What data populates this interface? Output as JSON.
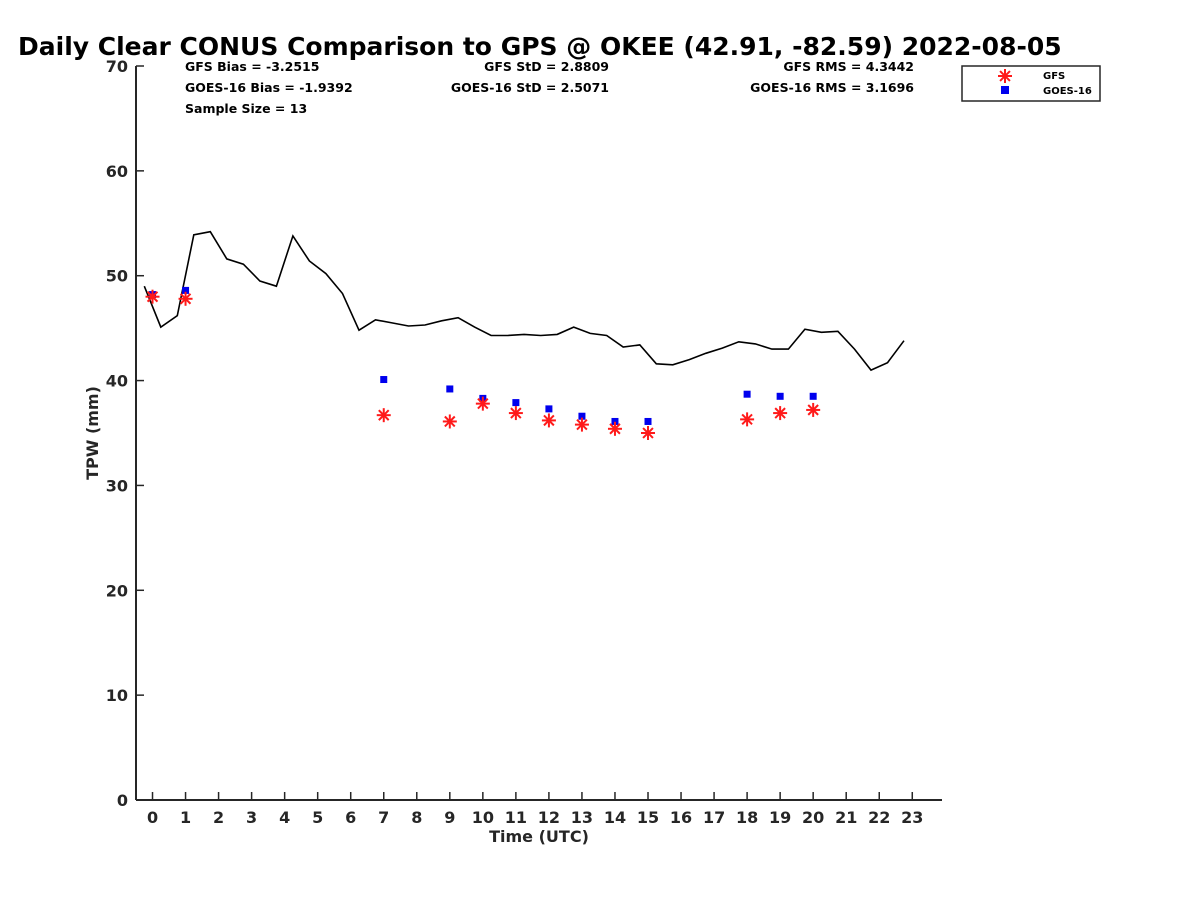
{
  "chart_data": {
    "type": "scatter",
    "title": "Daily Clear CONUS Comparison to GPS @ OKEE (42.91, -82.59) 2022-08-05",
    "xlabel": "Time (UTC)",
    "ylabel": "TPW (mm)",
    "xlim": [
      -0.5,
      23.9
    ],
    "ylim": [
      0,
      70
    ],
    "xticks": [
      0,
      1,
      2,
      3,
      4,
      5,
      6,
      7,
      8,
      9,
      10,
      11,
      12,
      13,
      14,
      15,
      16,
      17,
      18,
      19,
      20,
      21,
      22,
      23
    ],
    "yticks": [
      0,
      10,
      20,
      30,
      40,
      50,
      60,
      70
    ],
    "grid": false,
    "legend_position": "top-right, outside plot area",
    "stats": {
      "gfs_bias": "GFS Bias = -3.2515",
      "gfs_std": "GFS StD = 2.8809",
      "gfs_rms": "GFS RMS = 4.3442",
      "goes_bias": "GOES-16 Bias = -1.9392",
      "goes_std": "GOES-16 StD = 2.5071",
      "goes_rms": "GOES-16 RMS = 3.1696",
      "sample_size": "Sample Size = 13"
    },
    "series": [
      {
        "kind": "line",
        "color": "#000000",
        "x": [
          -0.25,
          0.25,
          0.75,
          1.25,
          1.75,
          2.25,
          2.75,
          3.25,
          3.75,
          4.25,
          4.75,
          5.25,
          5.75,
          6.25,
          6.75,
          7.25,
          7.75,
          8.25,
          8.75,
          9.25,
          9.75,
          10.25,
          10.75,
          11.25,
          11.75,
          12.25,
          12.75,
          13.25,
          13.75,
          14.25,
          14.75,
          15.25,
          15.75,
          16.25,
          16.75,
          17.25,
          17.75,
          18.25,
          18.75,
          19.25,
          19.75,
          20.25,
          20.75,
          21.25,
          21.75,
          22.25,
          22.75
        ],
        "y": [
          49.0,
          45.1,
          46.2,
          53.9,
          54.2,
          51.6,
          51.1,
          49.5,
          49.0,
          53.8,
          51.4,
          50.2,
          48.3,
          44.8,
          45.8,
          45.5,
          45.2,
          45.3,
          45.7,
          46.0,
          45.1,
          44.3,
          44.3,
          44.4,
          44.3,
          44.4,
          45.1,
          44.5,
          44.3,
          43.2,
          43.4,
          41.6,
          41.5,
          42.0,
          42.6,
          43.1,
          43.7,
          43.5,
          43.0,
          43.0,
          44.9,
          44.6,
          44.7,
          43.0,
          41.0,
          41.7,
          43.8
        ]
      },
      {
        "name": "GFS",
        "kind": "asterisk",
        "color": "#ff1a1a",
        "x": [
          0,
          1,
          7,
          9,
          10,
          11,
          12,
          13,
          14,
          15,
          18,
          19,
          20
        ],
        "y": [
          48.0,
          47.8,
          36.7,
          36.1,
          37.8,
          36.9,
          36.2,
          35.8,
          35.4,
          35.0,
          36.3,
          36.9,
          37.2
        ]
      },
      {
        "name": "GOES-16",
        "kind": "square",
        "color": "#0000ee",
        "x": [
          0,
          1,
          7,
          9,
          10,
          11,
          12,
          13,
          14,
          15,
          18,
          19,
          20
        ],
        "y": [
          48.2,
          48.6,
          40.1,
          39.2,
          38.3,
          37.9,
          37.3,
          36.6,
          36.1,
          36.1,
          38.7,
          38.5,
          38.5
        ]
      }
    ]
  }
}
